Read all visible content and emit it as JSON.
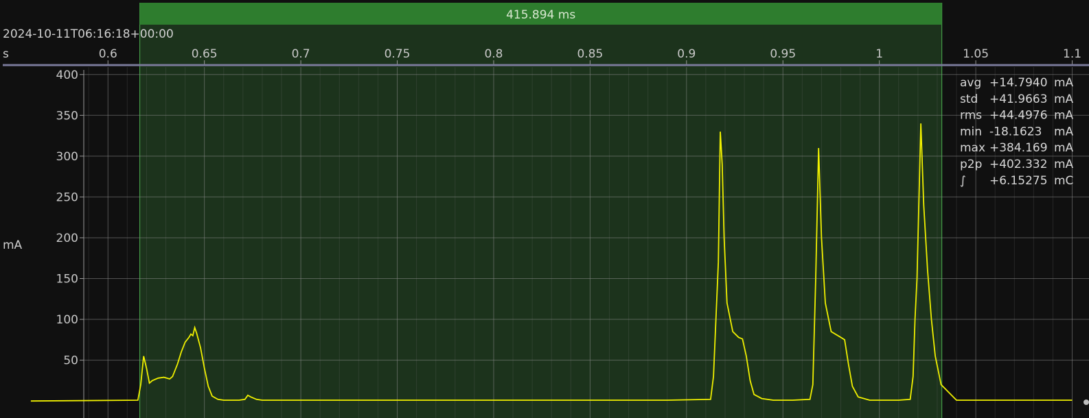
{
  "timestamp": "2024-10-11T06:16:18+00:00",
  "x_unit": "s",
  "y_unit": "mA",
  "selection": {
    "start_s": 0.6165,
    "end_s": 1.0324,
    "duration_label": "415.894 ms",
    "fill_color": "#1e3a1e",
    "header_color": "#2e7d2e"
  },
  "stats": [
    {
      "name": "avg",
      "value": "+14.7940",
      "unit": "mA"
    },
    {
      "name": "std",
      "value": "+41.9663",
      "unit": "mA"
    },
    {
      "name": "rms",
      "value": "+44.4976",
      "unit": "mA"
    },
    {
      "name": "min",
      "value": "-18.1623",
      "unit": "mA"
    },
    {
      "name": "max",
      "value": "+384.169",
      "unit": "mA"
    },
    {
      "name": "p2p",
      "value": "+402.332",
      "unit": "mA"
    },
    {
      "name": "∫",
      "value": "+6.15275",
      "unit": "mC"
    }
  ],
  "chart_data": {
    "type": "line",
    "xlabel": "s",
    "ylabel": "mA",
    "xlim": [
      0.56,
      1.1
    ],
    "ylim": [
      -18,
      405
    ],
    "x_ticks": [
      0.6,
      0.65,
      0.7,
      0.75,
      0.8,
      0.85,
      0.9,
      0.95,
      1,
      1.05,
      1.1
    ],
    "x_tick_labels": [
      "0.6",
      "0.65",
      "0.7",
      "0.75",
      "0.8",
      "0.85",
      "0.9",
      "0.95",
      "1",
      "1.05",
      "1.1"
    ],
    "y_ticks": [
      50,
      100,
      150,
      200,
      250,
      300,
      350,
      400
    ],
    "y_tick_labels": [
      "50",
      "100",
      "150",
      "200",
      "250",
      "300",
      "350",
      "400"
    ],
    "grid": true,
    "line_color": "#f0f000",
    "series": [
      {
        "x": [
          0.56,
          0.6155,
          0.617,
          0.6185,
          0.62,
          0.6215,
          0.623,
          0.626,
          0.629,
          0.632,
          0.6335,
          0.636,
          0.638,
          0.64,
          0.642,
          0.643,
          0.644,
          0.645,
          0.646,
          0.648,
          0.65,
          0.652,
          0.654,
          0.657,
          0.66,
          0.664,
          0.668,
          0.671,
          0.6725,
          0.674,
          0.677,
          0.68,
          0.7,
          0.75,
          0.8,
          0.85,
          0.89,
          0.9125,
          0.914,
          0.9165,
          0.9175,
          0.9185,
          0.9195,
          0.921,
          0.924,
          0.927,
          0.929,
          0.931,
          0.933,
          0.935,
          0.939,
          0.945,
          0.955,
          0.964,
          0.9655,
          0.967,
          0.9685,
          0.97,
          0.972,
          0.975,
          0.98,
          0.982,
          0.984,
          0.986,
          0.989,
          0.995,
          1.01,
          1.016,
          1.0175,
          1.0185,
          1.0195,
          1.0215,
          1.023,
          1.025,
          1.027,
          1.029,
          1.032,
          1.04,
          1.1
        ],
        "y": [
          0,
          1,
          20,
          55,
          40,
          22,
          25,
          28,
          29,
          27,
          30,
          45,
          60,
          72,
          78,
          82,
          80,
          90,
          83,
          65,
          40,
          18,
          6,
          2,
          1,
          1,
          1,
          2,
          7,
          5,
          2,
          1,
          1,
          1,
          1,
          1,
          1,
          2,
          30,
          170,
          330,
          290,
          200,
          120,
          85,
          78,
          76,
          55,
          25,
          8,
          3,
          1,
          1,
          2,
          20,
          150,
          310,
          200,
          120,
          85,
          78,
          75,
          45,
          18,
          5,
          1,
          1,
          2,
          30,
          100,
          150,
          340,
          240,
          160,
          100,
          55,
          20,
          1,
          1
        ]
      }
    ]
  }
}
